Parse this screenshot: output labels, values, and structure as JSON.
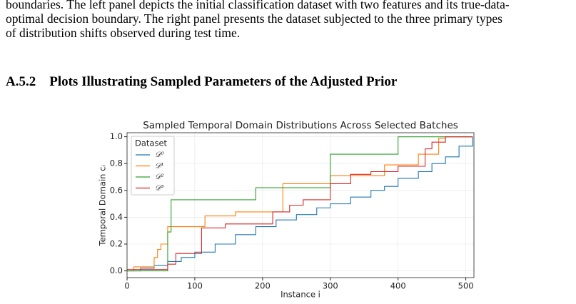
{
  "paragraph": {
    "lines": [
      "boundaries. The left panel depicts the initial classification dataset with two features and its true-data-",
      "optimal decision boundary. The right panel presents the dataset subjected to the three primary types",
      "of distribution shifts observed during test time."
    ]
  },
  "section_heading": "A.5.2 Plots Illustrating Sampled Parameters of the Adjusted Prior",
  "chart_data": {
    "type": "line",
    "drawstyle": "steps-post",
    "title": "Sampled Temporal Domain Distributions Across Selected Batches",
    "x_label": "Instance i",
    "y_label": "Temporal Domain cᵢ",
    "legend_title": "Dataset",
    "legend": "upper left",
    "grid": true,
    "xlim": [
      0,
      512
    ],
    "ylim": [
      -0.05,
      1.03
    ],
    "xticks": [
      0,
      100,
      200,
      300,
      400,
      500
    ],
    "yticks": [
      {
        "value": 0,
        "label": "0.0"
      },
      {
        "value": 0.2,
        "label": "0.2"
      },
      {
        "value": 0.4,
        "label": "0.4"
      },
      {
        "value": 0.6,
        "label": "0.6"
      },
      {
        "value": 0.8,
        "label": "0.8"
      },
      {
        "value": 1,
        "label": "1.0"
      }
    ],
    "series": [
      {
        "name": "𝒟⁰",
        "color": "#1f77b4",
        "x": [
          0,
          20,
          40,
          60,
          80,
          100,
          130,
          160,
          190,
          220,
          250,
          280,
          300,
          330,
          360,
          380,
          400,
          430,
          450,
          470,
          490,
          510
        ],
        "values": [
          0,
          0.02,
          0.04,
          0.07,
          0.1,
          0.14,
          0.2,
          0.27,
          0.33,
          0.38,
          0.42,
          0.47,
          0.5,
          0.55,
          0.6,
          0.63,
          0.69,
          0.74,
          0.8,
          0.85,
          0.93,
          1.0
        ]
      },
      {
        "name": "𝒟¹",
        "color": "#ff7f0e",
        "x": [
          0,
          10,
          40,
          45,
          50,
          60,
          115,
          160,
          230,
          300,
          380,
          400,
          430,
          460,
          470,
          510
        ],
        "values": [
          0,
          0.03,
          0.1,
          0.16,
          0.2,
          0.33,
          0.41,
          0.44,
          0.65,
          0.71,
          0.79,
          0.79,
          0.87,
          0.99,
          1.0,
          1.0
        ]
      },
      {
        "name": "𝒟²",
        "color": "#2ca02c",
        "x": [
          0,
          60,
          65,
          190,
          300,
          400,
          510
        ],
        "values": [
          0,
          0.29,
          0.53,
          0.62,
          0.87,
          1.0,
          1.0
        ]
      },
      {
        "name": "𝒟³",
        "color": "#d62728",
        "x": [
          0,
          60,
          72,
          110,
          145,
          215,
          240,
          260,
          300,
          330,
          360,
          400,
          440,
          450,
          470,
          510
        ],
        "values": [
          0.01,
          0.05,
          0.13,
          0.32,
          0.35,
          0.44,
          0.49,
          0.53,
          0.65,
          0.72,
          0.74,
          0.78,
          0.91,
          0.96,
          1.0,
          1.0
        ]
      }
    ]
  }
}
